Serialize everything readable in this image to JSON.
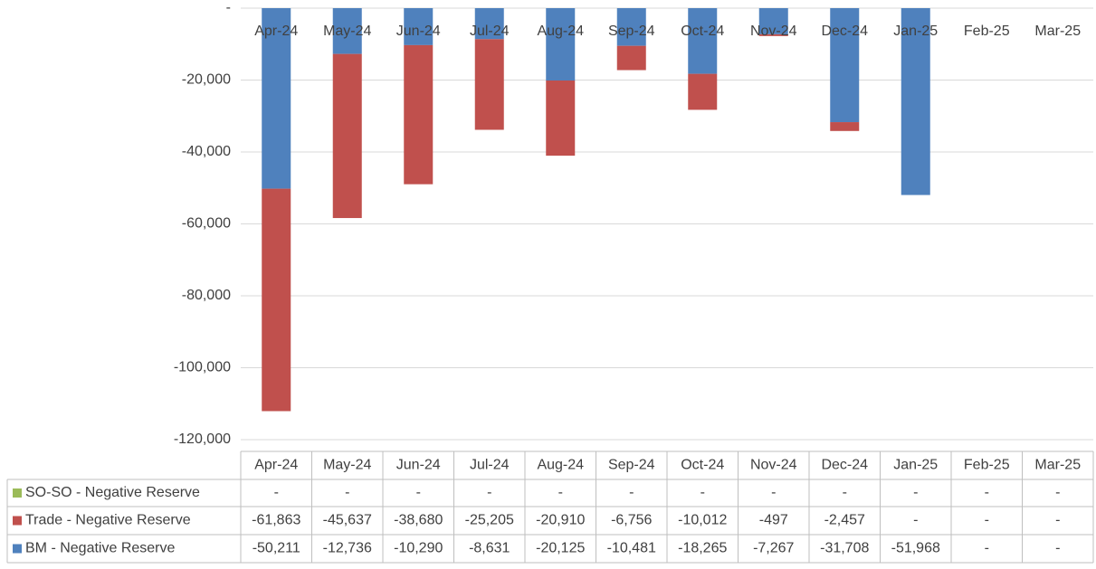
{
  "chart_data": {
    "type": "bar",
    "stacked": true,
    "categories": [
      "Apr-24",
      "May-24",
      "Jun-24",
      "Jul-24",
      "Aug-24",
      "Sep-24",
      "Oct-24",
      "Nov-24",
      "Dec-24",
      "Jan-25",
      "Feb-25",
      "Mar-25"
    ],
    "series": [
      {
        "name": "SO-SO - Negative Reserve",
        "color": "#9bbb59",
        "values": [
          0,
          0,
          0,
          0,
          0,
          0,
          0,
          0,
          0,
          0,
          0,
          0
        ],
        "value_labels": [
          "-",
          "-",
          "-",
          "-",
          "-",
          "-",
          "-",
          "-",
          "-",
          "-",
          "-",
          "-"
        ]
      },
      {
        "name": "Trade - Negative Reserve",
        "color": "#c0504d",
        "values": [
          -61863,
          -45637,
          -38680,
          -25205,
          -20910,
          -6756,
          -10012,
          -497,
          -2457,
          0,
          0,
          0
        ],
        "value_labels": [
          "-61,863",
          "-45,637",
          "-38,680",
          "-25,205",
          "-20,910",
          "-6,756",
          "-10,012",
          "-497",
          "-2,457",
          "-",
          "-",
          "-"
        ]
      },
      {
        "name": "BM - Negative Reserve",
        "color": "#4f81bd",
        "values": [
          -50211,
          -12736,
          -10290,
          -8631,
          -20125,
          -10481,
          -18265,
          -7267,
          -31708,
          -51968,
          0,
          0
        ],
        "value_labels": [
          "-50,211",
          "-12,736",
          "-10,290",
          "-8,631",
          "-20,125",
          "-10,481",
          "-18,265",
          "-7,267",
          "-31,708",
          "-51,968",
          "-",
          "-"
        ]
      }
    ],
    "ylim": [
      -120000,
      0
    ],
    "yticks": [
      {
        "value": 0,
        "label": "-"
      },
      {
        "value": -20000,
        "label": "-20,000"
      },
      {
        "value": -40000,
        "label": "-40,000"
      },
      {
        "value": -60000,
        "label": "-60,000"
      },
      {
        "value": -80000,
        "label": "-80,000"
      },
      {
        "value": -100000,
        "label": "-100,000"
      },
      {
        "value": -120000,
        "label": "-120,000"
      }
    ],
    "grid": true
  }
}
